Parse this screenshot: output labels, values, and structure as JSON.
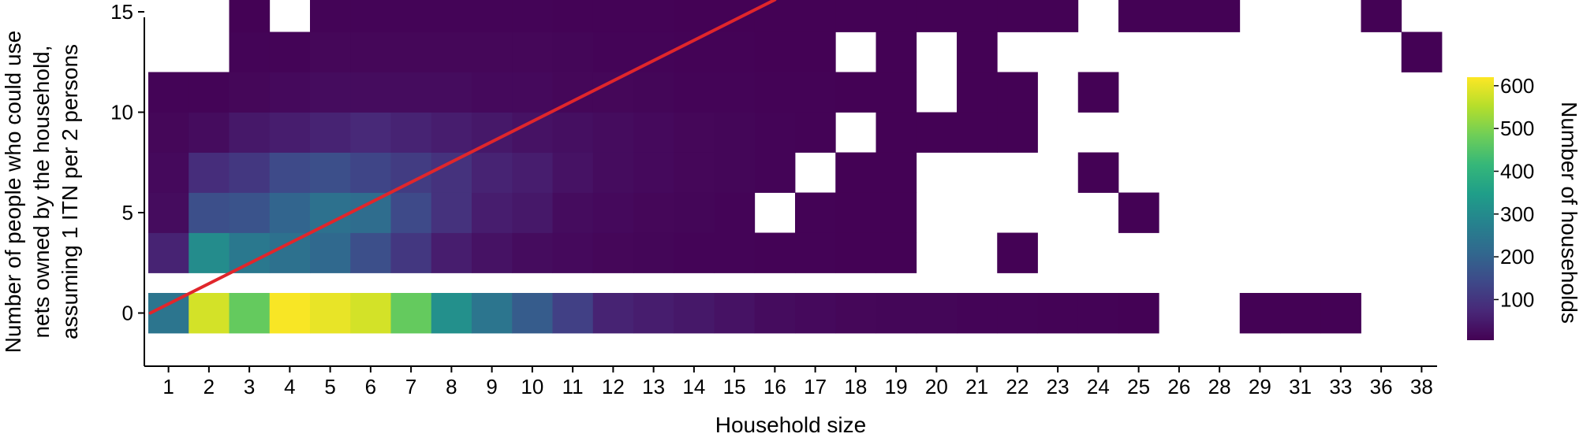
{
  "chart_data": {
    "type": "heatmap",
    "xlabel": "Household size",
    "ylabel_lines": [
      "Number of people who could use",
      "nets owned by the household,",
      "assuming 1 ITN per 2 persons"
    ],
    "x_categories": [
      "1",
      "2",
      "3",
      "4",
      "5",
      "6",
      "7",
      "8",
      "9",
      "10",
      "11",
      "12",
      "13",
      "14",
      "15",
      "16",
      "17",
      "18",
      "19",
      "20",
      "21",
      "22",
      "23",
      "24",
      "25",
      "26",
      "28",
      "29",
      "31",
      "33",
      "36",
      "38"
    ],
    "y_bins": [
      0,
      3,
      5,
      7,
      9,
      11,
      13,
      15
    ],
    "y_ticks": [
      0,
      5,
      10,
      15
    ],
    "colorbar": {
      "label": "Number of households",
      "ticks": [
        100,
        200,
        300,
        400,
        500,
        600
      ],
      "range": [
        0,
        620
      ]
    },
    "colorscale": [
      "#440154",
      "#482878",
      "#3e4989",
      "#31688e",
      "#26828e",
      "#1f9e89",
      "#35b779",
      "#6ece58",
      "#b5de2b",
      "#fde725"
    ],
    "cells": {
      "0": [
        240,
        580,
        470,
        615,
        600,
        580,
        470,
        310,
        240,
        180,
        120,
        60,
        50,
        40,
        30,
        20,
        15,
        10,
        8,
        8,
        6,
        5,
        4,
        3,
        2,
        0,
        0,
        2,
        2,
        1,
        0,
        0
      ],
      "3": [
        60,
        300,
        250,
        230,
        210,
        150,
        100,
        50,
        30,
        20,
        15,
        10,
        8,
        6,
        5,
        4,
        3,
        2,
        2,
        0,
        0,
        1,
        0,
        0,
        0,
        0,
        0,
        0,
        0,
        0,
        0,
        0
      ],
      "5": [
        20,
        150,
        160,
        200,
        230,
        220,
        140,
        90,
        50,
        40,
        20,
        15,
        10,
        8,
        6,
        0,
        3,
        2,
        2,
        0,
        0,
        0,
        0,
        0,
        1,
        0,
        0,
        0,
        0,
        0,
        0,
        0
      ],
      "7": [
        15,
        80,
        100,
        140,
        150,
        130,
        110,
        90,
        60,
        50,
        30,
        20,
        15,
        10,
        8,
        6,
        0,
        2,
        2,
        0,
        0,
        0,
        0,
        1,
        0,
        0,
        0,
        0,
        0,
        0,
        0,
        0
      ],
      "9": [
        10,
        20,
        40,
        50,
        60,
        70,
        60,
        50,
        40,
        30,
        25,
        20,
        15,
        10,
        8,
        6,
        4,
        0,
        2,
        2,
        2,
        1,
        0,
        0,
        0,
        0,
        0,
        0,
        0,
        0,
        0,
        0
      ],
      "11": [
        5,
        5,
        10,
        15,
        20,
        20,
        20,
        20,
        15,
        15,
        10,
        10,
        8,
        6,
        5,
        4,
        3,
        2,
        2,
        0,
        2,
        1,
        0,
        1,
        0,
        0,
        0,
        0,
        0,
        0,
        0,
        0
      ],
      "13": [
        0,
        0,
        5,
        5,
        10,
        10,
        10,
        10,
        10,
        10,
        8,
        6,
        5,
        4,
        3,
        2,
        2,
        0,
        2,
        0,
        1,
        0,
        0,
        0,
        0,
        0,
        0,
        0,
        0,
        0,
        0,
        1
      ],
      "15": [
        0,
        0,
        2,
        0,
        5,
        5,
        5,
        5,
        5,
        5,
        4,
        3,
        3,
        2,
        2,
        2,
        2,
        1,
        1,
        1,
        1,
        1,
        1,
        0,
        1,
        1,
        1,
        0,
        0,
        0,
        1,
        0
      ]
    },
    "line": {
      "x": [
        0.55,
        16
      ],
      "y": [
        0,
        15.6
      ]
    },
    "line_color": "#e0262b"
  }
}
